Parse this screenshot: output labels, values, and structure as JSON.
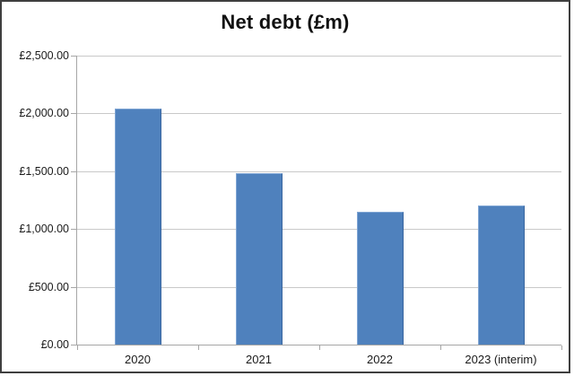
{
  "chart_data": {
    "type": "bar",
    "title": "Net debt (£m)",
    "categories": [
      "2020",
      "2021",
      "2022",
      "2023 (interim)"
    ],
    "values": [
      2040,
      1480,
      1150,
      1200
    ],
    "y_tick_labels": [
      "£0.00",
      "£500.00",
      "£1,000.00",
      "£1,500.00",
      "£2,000.00",
      "£2,500.00"
    ],
    "y_tick_values": [
      0,
      500,
      1000,
      1500,
      2000,
      2500
    ],
    "ylim": [
      0,
      2500
    ],
    "xlabel": "",
    "ylabel": "",
    "grid": true,
    "legend": false,
    "layout": {
      "gridlines_horizontal": true,
      "bars_over_gridlines": true,
      "axis_ticks_outside": true
    },
    "colors": {
      "bar_fill": "#4F81BD",
      "bar_edge_light": "#7FA5D4",
      "bar_edge_dark": "#38659F",
      "gridline": "#C9C9C9",
      "axis_line": "#A6A6A6",
      "frame_border": "#3F3F3F",
      "title_text": "#111111",
      "label_text": "#1A1A1A",
      "background": "#FFFFFF"
    }
  }
}
